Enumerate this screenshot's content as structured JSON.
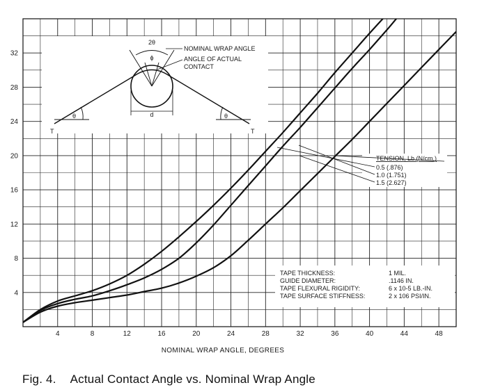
{
  "caption": {
    "figure": "Fig. 4.",
    "title": "Actual Contact Angle vs. Nominal Wrap Angle"
  },
  "chart_data": {
    "type": "line",
    "xlabel": "NOMINAL WRAP ANGLE, DEGREES",
    "ylabel": "",
    "xlim": [
      0,
      50
    ],
    "ylim": [
      0,
      36
    ],
    "xticks": [
      4,
      8,
      12,
      16,
      20,
      24,
      28,
      32,
      36,
      40,
      44,
      48
    ],
    "yticks": [
      4,
      8,
      12,
      16,
      20,
      24,
      28,
      32
    ],
    "grid": true,
    "legend": {
      "title": "TENSION, Lb.(N/cm.)",
      "placement": "right",
      "entries": [
        "0.5 (.876)",
        "1.0 (1.751)",
        "1.5 (2.627)"
      ]
    },
    "series": [
      {
        "name": "0.5 (.876)",
        "x": [
          0,
          2,
          4,
          6,
          8,
          10,
          12,
          14,
          16,
          18,
          20,
          22,
          24,
          26,
          28,
          30,
          32,
          34,
          36,
          38,
          40,
          42,
          43.5
        ],
        "y": [
          0.5,
          2.0,
          3.0,
          3.6,
          4.2,
          5.0,
          6.0,
          7.3,
          8.8,
          10.5,
          12.3,
          14.2,
          16.2,
          18.3,
          20.5,
          22.7,
          25.0,
          27.3,
          29.7,
          32.0,
          34.3,
          36.5,
          38.0
        ]
      },
      {
        "name": "1.0 (1.751)",
        "x": [
          0,
          2,
          4,
          6,
          8,
          10,
          12,
          14,
          16,
          18,
          20,
          22,
          24,
          26,
          28,
          30,
          32,
          34,
          36,
          38,
          40,
          42,
          44,
          46
        ],
        "y": [
          0.5,
          1.9,
          2.7,
          3.2,
          3.6,
          4.2,
          4.9,
          5.7,
          6.7,
          8.0,
          9.8,
          11.9,
          14.2,
          16.5,
          18.8,
          21.1,
          23.3,
          25.6,
          27.9,
          30.2,
          32.4,
          34.7,
          37.0,
          38.5
        ]
      },
      {
        "name": "1.5 (2.627)",
        "x": [
          0,
          2,
          4,
          6,
          8,
          10,
          12,
          14,
          16,
          18,
          20,
          22,
          24,
          26,
          28,
          30,
          32,
          34,
          36,
          38,
          40,
          42,
          44,
          46,
          48,
          50
        ],
        "y": [
          0.5,
          1.7,
          2.4,
          2.8,
          3.1,
          3.4,
          3.7,
          4.1,
          4.5,
          5.1,
          5.9,
          6.9,
          8.3,
          10.1,
          12.0,
          13.9,
          15.9,
          17.9,
          19.9,
          21.9,
          24.0,
          26.1,
          28.2,
          30.3,
          32.4,
          34.5
        ]
      }
    ],
    "annotation": {
      "lines": [
        {
          "label": "TAPE THICKNESS:",
          "value": "1 MIL."
        },
        {
          "label": "GUIDE DIAMETER:",
          "value": ".1146 IN."
        },
        {
          "label": "TAPE FLEXURAL RIGIDITY:",
          "value": "6 x 10-5 LB.-IN."
        },
        {
          "label": "TAPE SURFACE STIFFNESS:",
          "value": "2 x 106 PSI/IN."
        }
      ]
    },
    "diagram": {
      "nominal": "NOMINAL WRAP ANGLE",
      "actual1": "ANGLE OF ACTUAL",
      "actual2": "CONTACT",
      "two_theta": "2θ",
      "phi": "ϕ",
      "theta": "θ",
      "d": "d",
      "T": "T"
    }
  }
}
